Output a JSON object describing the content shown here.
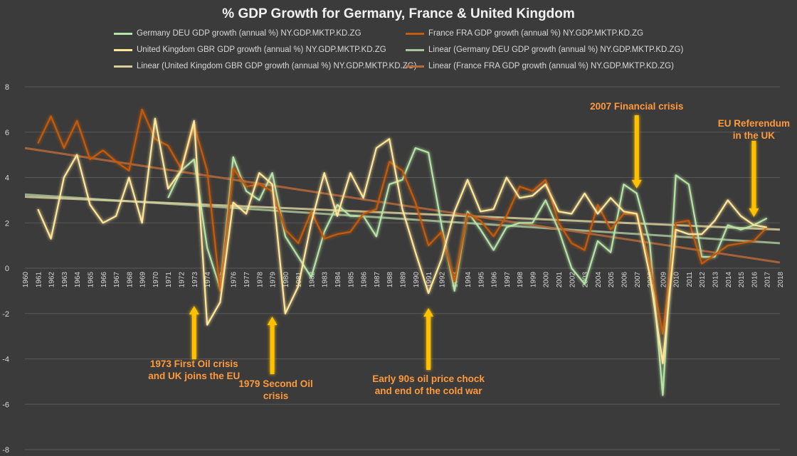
{
  "chart_data": {
    "type": "line",
    "title": "% GDP Growth for Germany, France & United Kingdom",
    "xlabel": "",
    "ylabel": "",
    "ylim": [
      -8,
      8
    ],
    "yticks": [
      -8,
      -6,
      -4,
      -2,
      0,
      2,
      4,
      6,
      8
    ],
    "x": [
      1960,
      1961,
      1962,
      1963,
      1964,
      1965,
      1966,
      1967,
      1968,
      1969,
      1970,
      1971,
      1972,
      1973,
      1974,
      1975,
      1976,
      1977,
      1978,
      1979,
      1980,
      1981,
      1982,
      1983,
      1984,
      1985,
      1986,
      1987,
      1988,
      1989,
      1990,
      1991,
      1992,
      1993,
      1994,
      1995,
      1996,
      1997,
      1998,
      1999,
      2000,
      2001,
      2002,
      2003,
      2004,
      2005,
      2006,
      2007,
      2008,
      2009,
      2010,
      2011,
      2012,
      2013,
      2014,
      2015,
      2016,
      2017,
      2018
    ],
    "grid": true,
    "legend_position": "top",
    "series": [
      {
        "name": "Germany DEU GDP growth (annual %) NY.GDP.MKTP.KD.ZG",
        "color": "#b6e3a6",
        "values": [
          null,
          null,
          null,
          null,
          null,
          null,
          null,
          null,
          null,
          null,
          null,
          3.1,
          4.3,
          4.8,
          0.9,
          -0.9,
          4.9,
          3.4,
          3.0,
          4.2,
          1.4,
          0.5,
          -0.4,
          1.6,
          2.8,
          2.3,
          2.3,
          1.4,
          3.7,
          3.9,
          5.3,
          5.1,
          1.9,
          -1.0,
          2.5,
          1.7,
          0.8,
          1.8,
          2.0,
          2.0,
          3.0,
          1.7,
          0.0,
          -0.7,
          1.2,
          0.7,
          3.7,
          3.3,
          1.1,
          -5.6,
          4.1,
          3.7,
          0.5,
          0.5,
          1.9,
          1.7,
          1.9,
          2.2,
          null
        ]
      },
      {
        "name": "France FRA GDP growth (annual %) NY.GDP.MKTP.KD.ZG",
        "color": "#c55a11",
        "values": [
          null,
          5.5,
          6.7,
          5.3,
          6.5,
          4.8,
          5.2,
          4.7,
          4.3,
          7.0,
          5.7,
          5.4,
          4.4,
          6.3,
          4.3,
          -1.0,
          4.4,
          3.6,
          3.7,
          3.4,
          1.7,
          1.1,
          2.5,
          1.3,
          1.5,
          1.6,
          2.4,
          2.6,
          4.7,
          4.3,
          2.9,
          1.0,
          1.6,
          -0.6,
          2.4,
          2.1,
          1.4,
          2.3,
          3.6,
          3.4,
          3.9,
          2.0,
          1.1,
          0.8,
          2.8,
          1.7,
          2.4,
          2.4,
          0.2,
          -2.9,
          2.0,
          2.1,
          0.2,
          0.6,
          1.0,
          1.1,
          1.2,
          1.8,
          null
        ]
      },
      {
        "name": "United Kingdom GBR GDP growth (annual %) NY.GDP.MKTP.KD.ZG",
        "color": "#ffe699",
        "values": [
          null,
          2.6,
          1.3,
          4.0,
          5.0,
          2.8,
          2.0,
          2.3,
          4.0,
          2.0,
          6.6,
          3.5,
          4.3,
          6.5,
          -2.5,
          -1.5,
          2.9,
          2.4,
          4.2,
          3.7,
          -2.0,
          -0.8,
          2.0,
          4.2,
          2.3,
          4.2,
          3.1,
          5.3,
          5.7,
          2.6,
          0.7,
          -1.1,
          0.4,
          2.5,
          3.9,
          2.5,
          2.6,
          4.0,
          3.1,
          3.2,
          3.7,
          2.5,
          2.4,
          3.3,
          2.4,
          3.1,
          2.5,
          2.4,
          -0.3,
          -4.2,
          1.7,
          1.5,
          1.5,
          2.1,
          3.0,
          2.3,
          1.9,
          1.8,
          null
        ]
      },
      {
        "name": "Linear (Germany DEU GDP growth (annual %) NY.GDP.MKTP.KD.ZG)",
        "color": "#a9c49a",
        "trendline": true,
        "values": [
          3.25,
          null,
          null,
          null,
          null,
          null,
          null,
          null,
          null,
          null,
          null,
          null,
          null,
          null,
          null,
          null,
          null,
          null,
          null,
          null,
          null,
          null,
          null,
          null,
          null,
          null,
          null,
          null,
          null,
          null,
          null,
          null,
          null,
          null,
          null,
          null,
          null,
          null,
          null,
          null,
          null,
          null,
          null,
          null,
          null,
          null,
          null,
          null,
          null,
          null,
          null,
          null,
          null,
          null,
          null,
          null,
          null,
          null,
          1.1
        ]
      },
      {
        "name": "Linear (United Kingdom GBR GDP growth (annual %) NY.GDP.MKTP.KD.ZG)",
        "color": "#d6cf9b",
        "trendline": true,
        "values": [
          3.15,
          null,
          null,
          null,
          null,
          null,
          null,
          null,
          null,
          null,
          null,
          null,
          null,
          null,
          null,
          null,
          null,
          null,
          null,
          null,
          null,
          null,
          null,
          null,
          null,
          null,
          null,
          null,
          null,
          null,
          null,
          null,
          null,
          null,
          null,
          null,
          null,
          null,
          null,
          null,
          null,
          null,
          null,
          null,
          null,
          null,
          null,
          null,
          null,
          null,
          null,
          null,
          null,
          null,
          null,
          null,
          null,
          null,
          1.7
        ]
      },
      {
        "name": "Linear (France FRA GDP growth (annual %) NY.GDP.MKTP.KD.ZG)",
        "color": "#b86a3a",
        "trendline": true,
        "values": [
          5.3,
          null,
          null,
          null,
          null,
          null,
          null,
          null,
          null,
          null,
          null,
          null,
          null,
          null,
          null,
          null,
          null,
          null,
          null,
          null,
          null,
          null,
          null,
          null,
          null,
          null,
          null,
          null,
          null,
          null,
          null,
          null,
          null,
          null,
          null,
          null,
          null,
          null,
          null,
          null,
          null,
          null,
          null,
          null,
          null,
          null,
          null,
          null,
          null,
          null,
          null,
          null,
          null,
          null,
          null,
          null,
          null,
          null,
          0.25
        ]
      }
    ],
    "legend_order": [
      0,
      1,
      2,
      3,
      4,
      5
    ],
    "annotations": [
      {
        "text_lines": [
          "1973 First Oil crisis",
          "and UK joins the EU"
        ],
        "year": 1973,
        "arrow": "up"
      },
      {
        "text_lines": [
          "1979 Second Oil",
          "crisis"
        ],
        "year": 1979,
        "arrow": "up"
      },
      {
        "text_lines": [
          "Early 90s oil price chock",
          "and end of the cold war"
        ],
        "year": 1991,
        "arrow": "up"
      },
      {
        "text_lines": [
          "2007 Financial crisis"
        ],
        "year": 2007,
        "arrow": "down"
      },
      {
        "text_lines": [
          "EU Referendum",
          "in the UK"
        ],
        "year": 2016,
        "arrow": "down"
      }
    ],
    "colors": {
      "background": "#3b3b3b",
      "grid": "#595959",
      "axis_text": "#d9d9d9",
      "annotation_text": "#ff9a3c",
      "arrow": "#ffc000"
    }
  }
}
